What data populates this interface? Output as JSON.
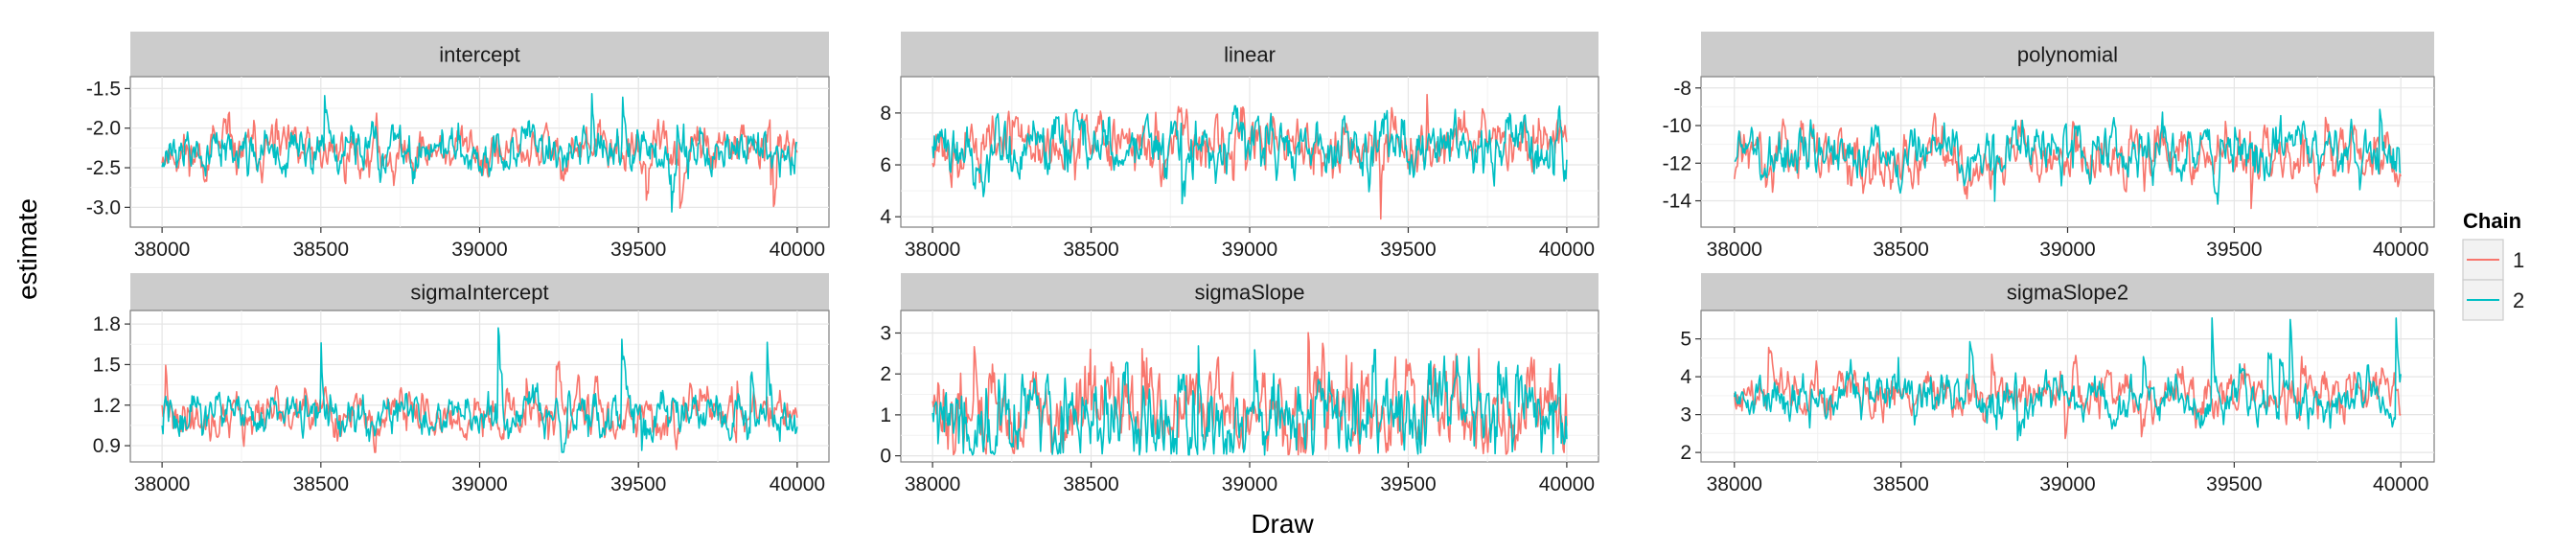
{
  "chart_data": {
    "type": "line",
    "xlabel": "Draw",
    "ylabel": "estimate",
    "grid": true,
    "legend": {
      "title": "Chain",
      "position": "right",
      "entries": [
        {
          "label": "1",
          "color": "#F8766D"
        },
        {
          "label": "2",
          "color": "#00BFC4"
        }
      ]
    },
    "xlim": [
      37900,
      40100
    ],
    "x_ticks": [
      38000,
      38500,
      39000,
      39500,
      40000
    ],
    "x_range": [
      38000,
      40000
    ],
    "panels": [
      {
        "title": "intercept",
        "ylim": [
          -3.25,
          -1.35
        ],
        "y_ticks": [
          -1.5,
          -2.0,
          -2.5,
          -3.0
        ],
        "y_tick_labels": [
          "-1.5",
          "-2.0",
          "-2.5",
          "-3.0"
        ],
        "series": [
          {
            "name": "1",
            "color": "#F8766D",
            "mean": -2.3,
            "spread": 0.2,
            "min": -3.05,
            "max": -1.65,
            "seed": 11
          },
          {
            "name": "2",
            "color": "#00BFC4",
            "mean": -2.3,
            "spread": 0.2,
            "min": -3.15,
            "max": -1.5,
            "seed": 12
          }
        ]
      },
      {
        "title": "linear",
        "ylim": [
          3.6,
          9.4
        ],
        "y_ticks": [
          4,
          6,
          8
        ],
        "y_tick_labels": [
          "4",
          "6",
          "8"
        ],
        "series": [
          {
            "name": "1",
            "color": "#F8766D",
            "mean": 6.8,
            "spread": 0.75,
            "min": 3.8,
            "max": 9.0,
            "seed": 21
          },
          {
            "name": "2",
            "color": "#00BFC4",
            "mean": 6.8,
            "spread": 0.75,
            "min": 4.0,
            "max": 9.2,
            "seed": 22
          }
        ]
      },
      {
        "title": "polynomial",
        "ylim": [
          -15.4,
          -7.4
        ],
        "y_ticks": [
          -8,
          -10,
          -12,
          -14
        ],
        "y_tick_labels": [
          "-8",
          "-10",
          "-12",
          "-14"
        ],
        "series": [
          {
            "name": "1",
            "color": "#F8766D",
            "mean": -11.6,
            "spread": 1.0,
            "min": -15.0,
            "max": -8.8,
            "seed": 31
          },
          {
            "name": "2",
            "color": "#00BFC4",
            "mean": -11.5,
            "spread": 1.0,
            "min": -14.8,
            "max": -8.0,
            "seed": 32
          }
        ]
      },
      {
        "title": "sigmaIntercept",
        "ylim": [
          0.78,
          1.9
        ],
        "y_ticks": [
          0.9,
          1.2,
          1.5,
          1.8
        ],
        "y_tick_labels": [
          "0.9",
          "1.2",
          "1.5",
          "1.8"
        ],
        "series": [
          {
            "name": "1",
            "color": "#F8766D",
            "mean": 1.12,
            "spread": 0.11,
            "min": 0.85,
            "max": 1.6,
            "seed": 41
          },
          {
            "name": "2",
            "color": "#00BFC4",
            "mean": 1.12,
            "spread": 0.11,
            "min": 0.85,
            "max": 1.82,
            "seed": 42
          }
        ]
      },
      {
        "title": "sigmaSlope",
        "ylim": [
          -0.15,
          3.55
        ],
        "y_ticks": [
          0,
          1,
          2,
          3
        ],
        "y_tick_labels": [
          "0",
          "1",
          "2",
          "3"
        ],
        "series": [
          {
            "name": "1",
            "color": "#F8766D",
            "mean": 1.0,
            "spread": 0.75,
            "min": 0.02,
            "max": 3.4,
            "seed": 51
          },
          {
            "name": "2",
            "color": "#00BFC4",
            "mean": 0.9,
            "spread": 0.75,
            "min": 0.02,
            "max": 3.0,
            "seed": 52
          }
        ]
      },
      {
        "title": "sigmaSlope2",
        "ylim": [
          1.75,
          5.75
        ],
        "y_ticks": [
          2,
          3,
          4,
          5
        ],
        "y_tick_labels": [
          "2",
          "3",
          "4",
          "5"
        ],
        "series": [
          {
            "name": "1",
            "color": "#F8766D",
            "mean": 3.5,
            "spread": 0.42,
            "min": 2.2,
            "max": 5.2,
            "seed": 61
          },
          {
            "name": "2",
            "color": "#00BFC4",
            "mean": 3.5,
            "spread": 0.42,
            "min": 2.0,
            "max": 5.6,
            "seed": 62
          }
        ]
      }
    ]
  }
}
